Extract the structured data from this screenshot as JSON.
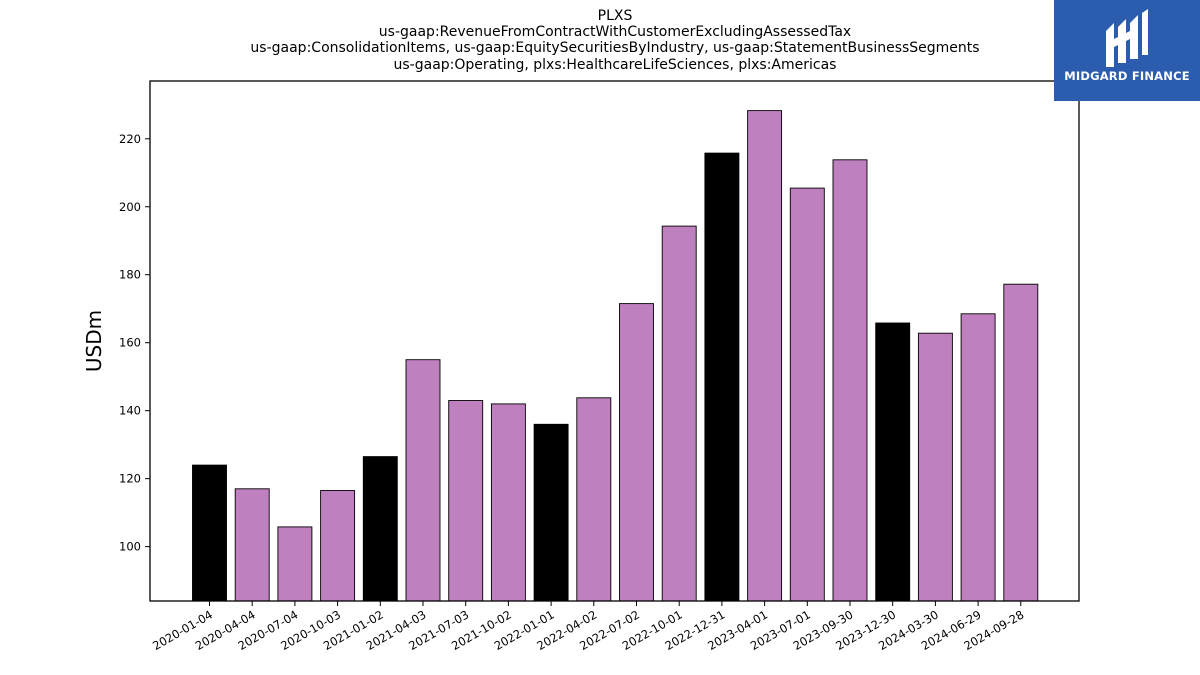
{
  "chart_data": {
    "type": "bar",
    "title_lines": [
      "PLXS",
      "us-gaap:RevenueFromContractWithCustomerExcludingAssessedTax",
      "us-gaap:ConsolidationItems, us-gaap:EquitySecuritiesByIndustry, us-gaap:StatementBusinessSegments",
      "us-gaap:Operating, plxs:HealthcareLifeSciences, plxs:Americas"
    ],
    "xlabel": "",
    "ylabel": "USDm",
    "ylim": [
      84,
      237
    ],
    "yticks": [
      100,
      120,
      140,
      160,
      180,
      200,
      220
    ],
    "grid": false,
    "categories": [
      "2020-01-04",
      "2020-04-04",
      "2020-07-04",
      "2020-10-03",
      "2021-01-02",
      "2021-04-03",
      "2021-07-03",
      "2021-10-02",
      "2022-01-01",
      "2022-04-02",
      "2022-07-02",
      "2022-10-01",
      "2022-12-31",
      "2023-04-01",
      "2023-07-01",
      "2023-09-30",
      "2023-12-30",
      "2024-03-30",
      "2024-06-29",
      "2024-09-28"
    ],
    "values": [
      124,
      117,
      105.8,
      116.5,
      126.5,
      155,
      143,
      142,
      136,
      143.8,
      171.5,
      194.3,
      215.8,
      228.3,
      205.5,
      213.8,
      165.8,
      162.8,
      168.5,
      177.2
    ],
    "bar_colors": [
      "#000000",
      "#bf80bf",
      "#bf80bf",
      "#bf80bf",
      "#000000",
      "#bf80bf",
      "#bf80bf",
      "#bf80bf",
      "#000000",
      "#bf80bf",
      "#bf80bf",
      "#bf80bf",
      "#000000",
      "#bf80bf",
      "#bf80bf",
      "#bf80bf",
      "#000000",
      "#bf80bf",
      "#bf80bf",
      "#bf80bf"
    ]
  },
  "logo": {
    "text": "MIDGARD FINANCE",
    "background": "#2b5cad"
  }
}
